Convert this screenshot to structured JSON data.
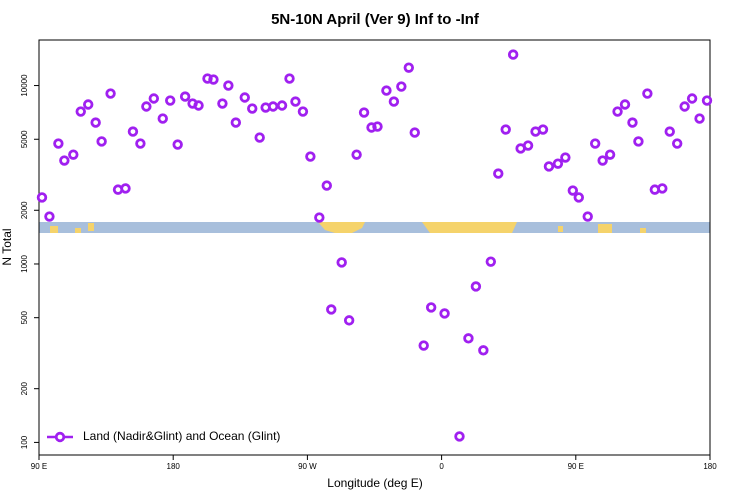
{
  "chart_data": {
    "type": "scatter",
    "title": "5N-10N April (Ver 9)   Inf to -Inf",
    "x_label": "Longitude (deg E)",
    "y_label": "N Total",
    "log_y": true,
    "xlim": [
      90,
      540
    ],
    "ylim": [
      85,
      18000
    ],
    "xticks": [
      {
        "value": 90,
        "label": "90 E"
      },
      {
        "value": 180,
        "label": "180"
      },
      {
        "value": 270,
        "label": "90 W"
      },
      {
        "value": 360,
        "label": "0"
      },
      {
        "value": 450,
        "label": "90 E"
      },
      {
        "value": 540,
        "label": "180"
      }
    ],
    "yticks": [
      100,
      200,
      500,
      1000,
      2000,
      5000,
      10000
    ],
    "legend_position": "bottom-left",
    "series": [
      {
        "name": "Land (Nadir&Glint) and Ocean (Glint)",
        "color": "#a020f0",
        "x": [
          92,
          97,
          103,
          107,
          113,
          118,
          123,
          128,
          132,
          138,
          143,
          148,
          153,
          158,
          162,
          167,
          173,
          178,
          183,
          188,
          193,
          197,
          203,
          207,
          213,
          217,
          222,
          228,
          233,
          238,
          242,
          247,
          253,
          258,
          262,
          267,
          272,
          278,
          283,
          286,
          293,
          298,
          303,
          308,
          313,
          317,
          323,
          328,
          333,
          338,
          342,
          348,
          353,
          362,
          372,
          378,
          383,
          388,
          393,
          398,
          403,
          408,
          413,
          418,
          423,
          428,
          432,
          438,
          443,
          448,
          452,
          458,
          463,
          468,
          473,
          478,
          483,
          488,
          492,
          498,
          503,
          508,
          513,
          518,
          523,
          528,
          533,
          538
        ],
        "values": [
          2360,
          1845,
          4730,
          3800,
          4100,
          7150,
          7830,
          6200,
          4860,
          9020,
          2610,
          2650,
          5520,
          4730,
          7630,
          8460,
          6530,
          8240,
          4670,
          8670,
          7930,
          7730,
          10940,
          10810,
          7930,
          10000,
          6200,
          8570,
          7430,
          5110,
          7530,
          7630,
          7730,
          10940,
          8130,
          7150,
          4000,
          1820,
          2750,
          556,
          1020,
          483,
          4100,
          7060,
          5820,
          5890,
          9370,
          8130,
          9870,
          12600,
          5450,
          349,
          571,
          528,
          108,
          383,
          748,
          328,
          1030,
          3210,
          5670,
          14910,
          4440,
          4610,
          5520,
          5670,
          3520,
          3650,
          3950,
          2580,
          2360,
          1845,
          4730,
          3800,
          4100,
          7150,
          7830,
          6200,
          4860,
          9020,
          2610,
          2650,
          5520,
          4730,
          7630,
          8460,
          6530,
          8240
        ]
      }
    ]
  }
}
